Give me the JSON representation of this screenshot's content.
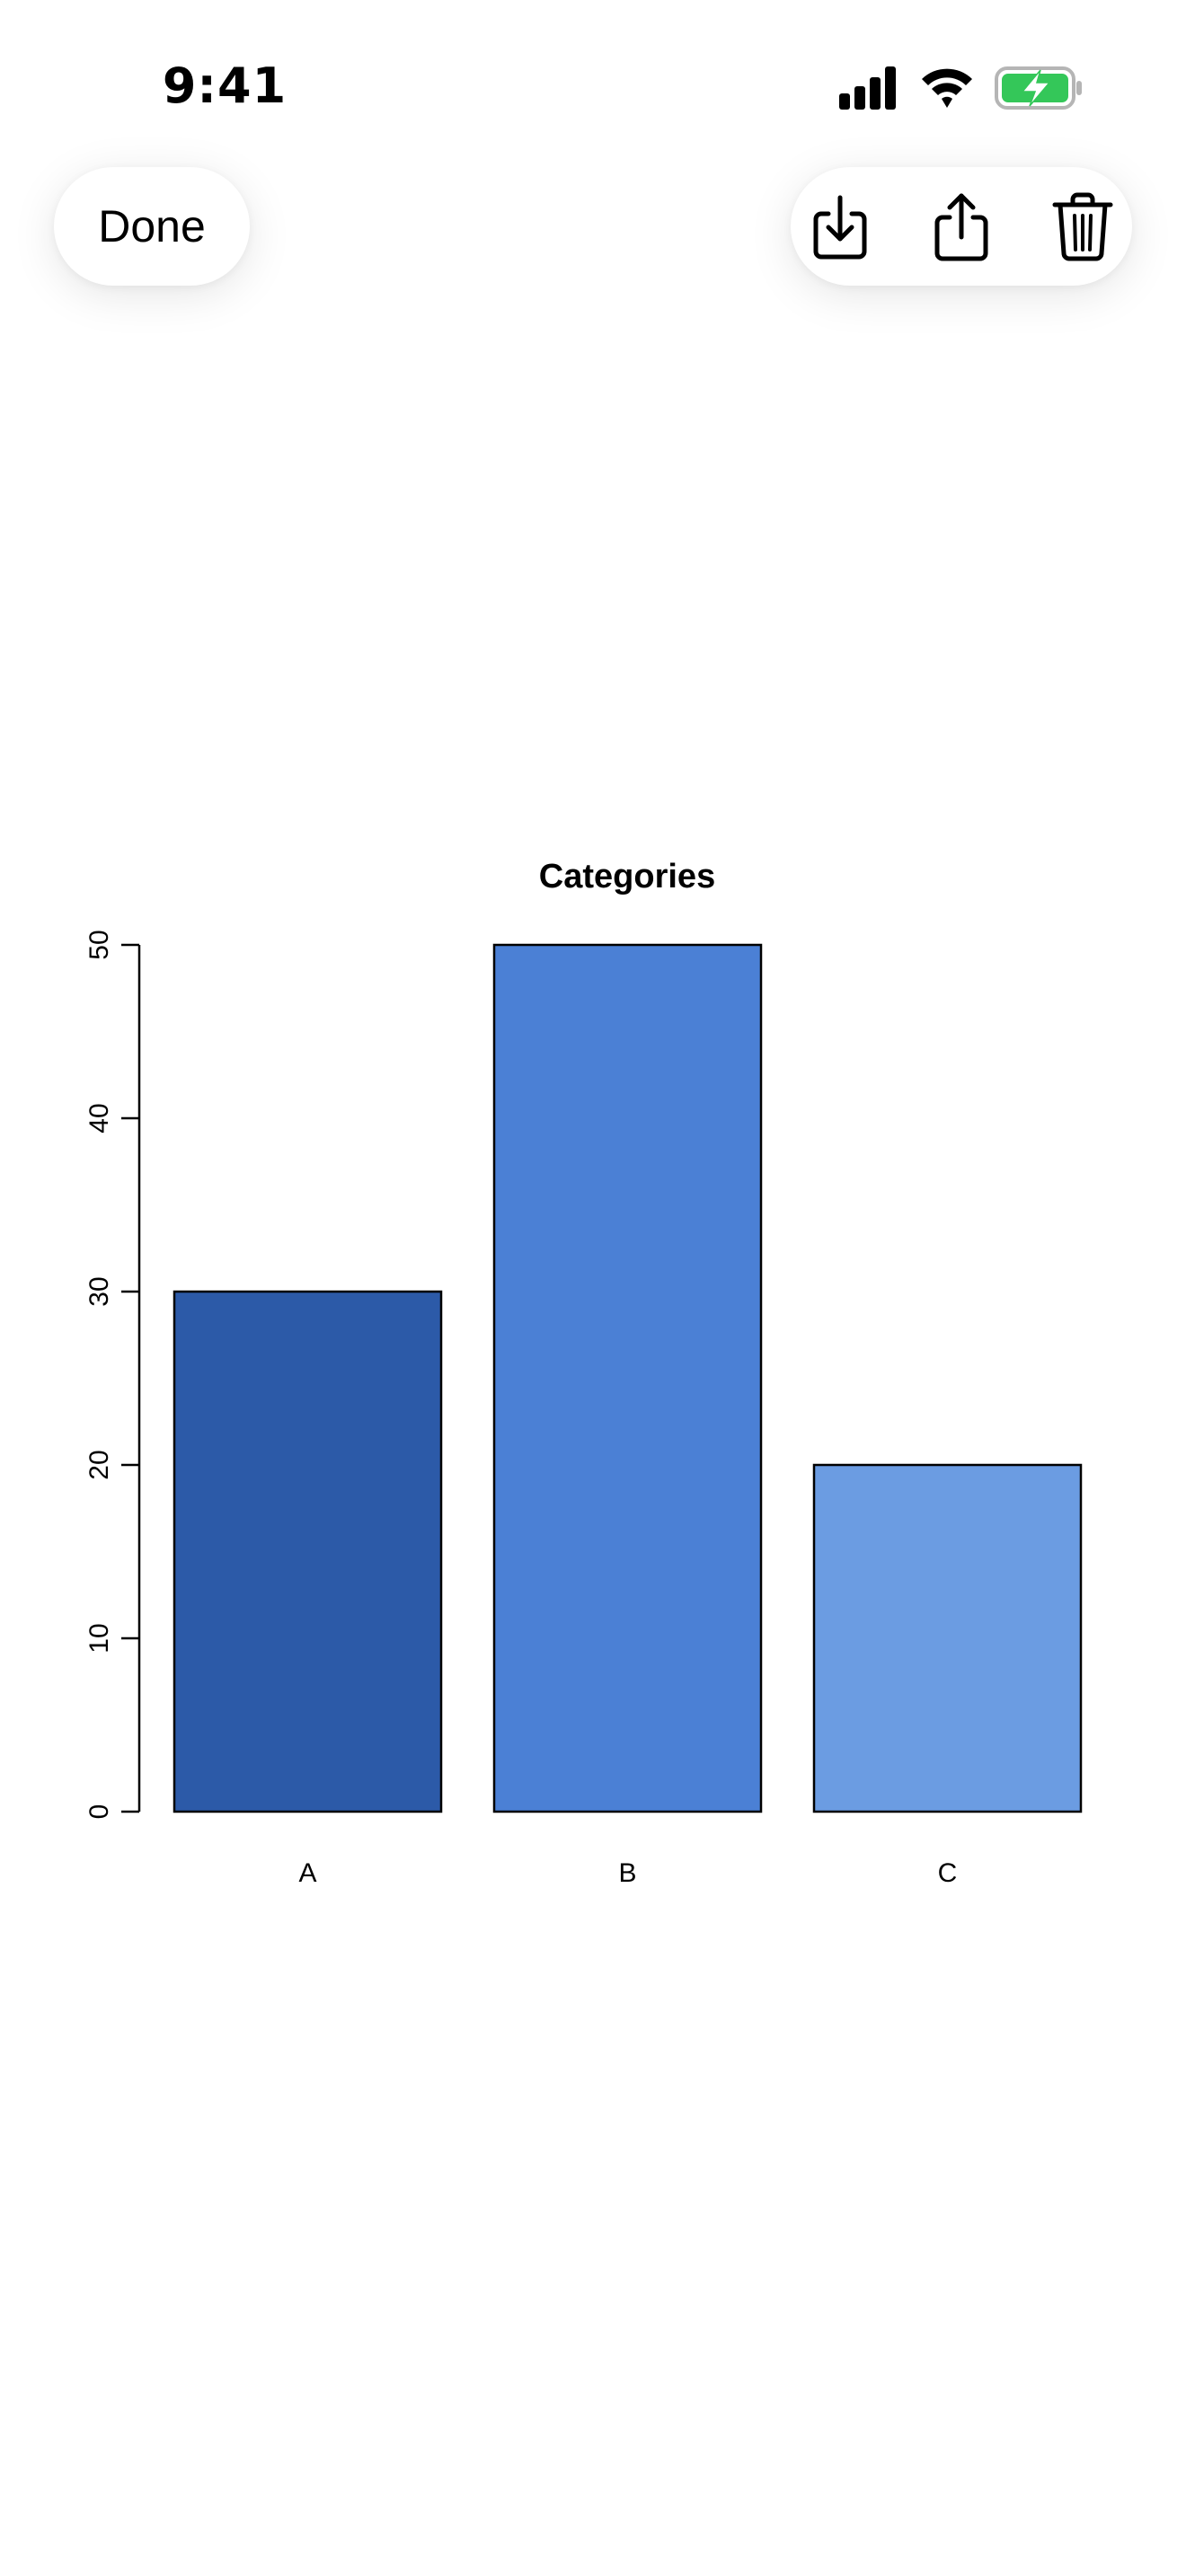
{
  "status_bar": {
    "time": "9:41",
    "icons": [
      "cellular-signal-icon",
      "wifi-icon",
      "battery-charging-icon"
    ],
    "battery_color": "#34c759"
  },
  "toolbar": {
    "done_label": "Done",
    "actions": [
      "download-icon",
      "share-icon",
      "trash-icon"
    ]
  },
  "chart_data": {
    "type": "bar",
    "title": "Categories",
    "categories": [
      "A",
      "B",
      "C"
    ],
    "values": [
      30,
      50,
      20
    ],
    "colors": [
      "#2c5aa8",
      "#4b80d5",
      "#6b9ce2"
    ],
    "ylim": [
      0,
      50
    ],
    "yticks": [
      0,
      10,
      20,
      30,
      40,
      50
    ],
    "xlabel": "",
    "ylabel": "",
    "grid": false,
    "legend": "none"
  }
}
